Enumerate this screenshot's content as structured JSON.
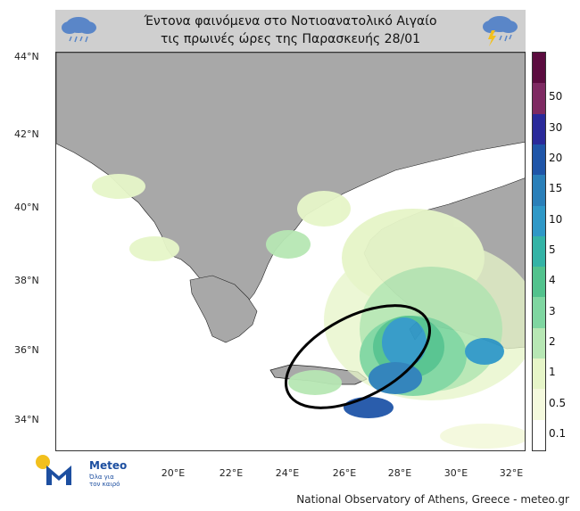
{
  "title": {
    "line1": "Έντονα φαινόμενα στο Νοτιοανατολικό Αιγαίο",
    "line2": "τις πρωινές ώρες της Παρασκευής 28/01"
  },
  "icons": {
    "left": "rain-cloud-icon",
    "right": "thunderstorm-cloud-icon"
  },
  "map": {
    "lat_ticks": [
      "44°N",
      "42°N",
      "40°N",
      "38°N",
      "36°N",
      "34°N"
    ],
    "lon_ticks": [
      "20°E",
      "22°E",
      "24°E",
      "26°E",
      "28°E",
      "30°E",
      "32°E"
    ],
    "extent": {
      "lon": [
        17.8,
        32.4
      ],
      "lat": [
        33.1,
        44.1
      ]
    },
    "highlight": "ellipse around the South-East Aegean",
    "colors": {
      "land": "#a8a8a8",
      "sea": "#ffffff",
      "ellipse": "#000000"
    }
  },
  "colorbar": {
    "labels": [
      "50",
      "30",
      "20",
      "15",
      "10",
      "5",
      "4",
      "3",
      "2",
      "1",
      "0.5",
      "0.1"
    ],
    "colors": [
      "#5b0c3f",
      "#7e2a62",
      "#2a2a9a",
      "#1f55a8",
      "#2a7fb9",
      "#2f98c7",
      "#34b3a6",
      "#52c28d",
      "#7fd6a1",
      "#b7e7b4",
      "#e6f5c8",
      "#f4f9dd"
    ]
  },
  "logo": {
    "name": "Meteo",
    "tagline": "Όλα για τον καιρό"
  },
  "credit": "National Observatory of Athens, Greece - meteo.gr"
}
